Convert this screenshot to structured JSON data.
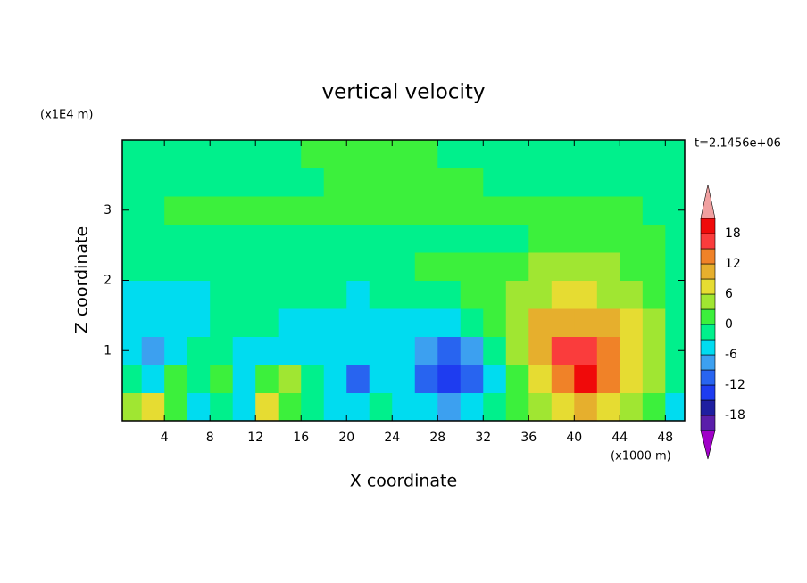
{
  "chart_data": {
    "type": "contour",
    "title": "vertical velocity",
    "x_label": "X coordinate",
    "y_label": "Z coordinate",
    "x_unit": "(x1000 m)",
    "y_unit": "(x1E4 m)",
    "annotation": "t=2.1456e+06",
    "xlim": [
      0.3,
      49.7
    ],
    "ylim": [
      0,
      4
    ],
    "xticks": [
      4,
      8,
      12,
      16,
      20,
      24,
      28,
      32,
      36,
      40,
      44,
      48
    ],
    "yticks": [
      1,
      2,
      3
    ],
    "x": [
      1,
      3,
      5,
      7,
      9,
      11,
      13,
      15,
      17,
      19,
      21,
      23,
      25,
      27,
      29,
      31,
      33,
      35,
      37,
      39,
      41,
      43,
      45,
      47,
      49
    ],
    "y": [
      0.2,
      0.6,
      1.0,
      1.4,
      1.8,
      2.2,
      2.6,
      3.0,
      3.4,
      3.8
    ],
    "z": [
      [
        3,
        6,
        1,
        -4,
        -1,
        -4,
        7,
        2,
        -1,
        -4,
        -6,
        -3,
        -4,
        -4,
        -8,
        -6,
        -1,
        1,
        4,
        8,
        10,
        8,
        4,
        1,
        -4
      ],
      [
        -1,
        -4,
        1,
        -1,
        1,
        -4,
        1,
        3,
        -1,
        -4,
        -10,
        -6,
        -4,
        -10,
        -14,
        -12,
        -4,
        2,
        8,
        14,
        19,
        14,
        8,
        3,
        -1
      ],
      [
        -4,
        -7,
        -4,
        -1,
        -1,
        -4,
        -4,
        -4,
        -4,
        -4,
        -6,
        -4,
        -5,
        -9,
        -12,
        -9,
        -3,
        5,
        11,
        16,
        15,
        12,
        7,
        3,
        -1
      ],
      [
        -4,
        -5,
        -5,
        -4,
        -1,
        -1,
        -1,
        -4,
        -4,
        -4,
        -4,
        -4,
        -4,
        -4,
        -4,
        -2,
        1,
        5,
        9,
        11,
        11,
        9,
        6,
        3,
        -1
      ],
      [
        -4,
        -4,
        -4,
        -4,
        -1,
        -1,
        -1,
        -1,
        -1,
        -1,
        -4,
        -1,
        -1,
        -1,
        -1,
        1,
        1,
        3,
        5,
        7,
        7,
        5,
        3,
        1,
        -1
      ],
      [
        -1,
        -1,
        -1,
        -1,
        -1,
        -1,
        -1,
        -1,
        -1,
        -1,
        -1,
        -1,
        -1,
        1,
        1,
        1,
        1,
        2,
        3,
        4,
        4,
        3,
        2,
        1,
        -1
      ],
      [
        -1,
        -1,
        -1,
        -1,
        -1,
        -1,
        -1,
        -1,
        -1,
        -1,
        -1,
        -1,
        -1,
        -1,
        -1,
        -1,
        -1,
        -1,
        1,
        1,
        1,
        1,
        1,
        1,
        -1
      ],
      [
        -1,
        -1,
        1,
        1,
        1,
        1,
        1,
        1,
        1,
        1,
        1,
        1,
        1,
        1,
        1,
        1,
        1,
        1,
        1,
        1,
        1,
        1,
        1,
        -1,
        -1
      ],
      [
        -1,
        -1,
        -1,
        -1,
        -1,
        -1,
        -1,
        -1,
        -1,
        1,
        1,
        1,
        1,
        1,
        1,
        1,
        -1,
        -1,
        -1,
        -1,
        -1,
        -1,
        -1,
        -1,
        -1
      ],
      [
        -1,
        -1,
        -1,
        -1,
        -1,
        -1,
        -1,
        -1,
        1,
        1,
        1,
        1,
        1,
        1,
        -1,
        -1,
        -1,
        -1,
        -1,
        -1,
        -1,
        -1,
        -1,
        -1,
        -1
      ]
    ],
    "levels": [
      -21,
      -18,
      -15,
      -12,
      -9,
      -6,
      -3,
      0,
      3,
      6,
      9,
      12,
      15,
      18,
      21
    ],
    "colors": [
      "#a000c8",
      "#5a1eaa",
      "#1e1ea0",
      "#1e3cf0",
      "#2864f0",
      "#3ca0f0",
      "#00dcf0",
      "#00f08c",
      "#3cf03c",
      "#a0e632",
      "#e6dc32",
      "#e6af2d",
      "#f08228",
      "#fa3c3c",
      "#f00a0a",
      "#f0a0a0"
    ],
    "colorbar_ticks": [
      18,
      12,
      6,
      0,
      -6,
      -12,
      -18
    ]
  }
}
